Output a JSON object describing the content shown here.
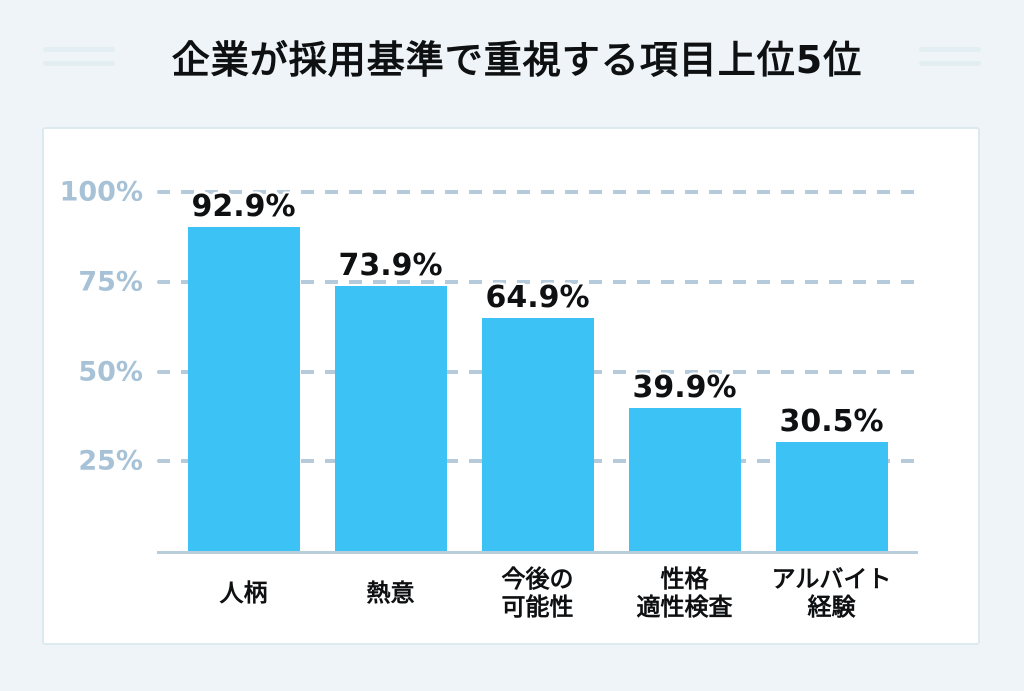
{
  "chart_data": {
    "type": "bar",
    "title": "企業が採用基準で重視する項目上位5位",
    "categories": [
      "人柄",
      "熱意",
      "今後の\n可能性",
      "性格\n適性検査",
      "アルバイト\n経験"
    ],
    "values": [
      92.9,
      73.9,
      64.9,
      39.9,
      30.5
    ],
    "value_labels": [
      "92.9%",
      "73.9%",
      "64.9%",
      "39.9%",
      "30.5%"
    ],
    "y_ticks": [
      {
        "label": "100%",
        "value": 100
      },
      {
        "label": "75%",
        "value": 75
      },
      {
        "label": "50%",
        "value": 50
      },
      {
        "label": "25%",
        "value": 25
      }
    ],
    "ylim": [
      0,
      100
    ],
    "xlabel": "",
    "ylabel": "",
    "grid": "dashed-horizontal",
    "legend": "none",
    "bar_color": "#3cc2f4",
    "tick_color": "#a7c2d7",
    "label_color": "#0e1012"
  }
}
